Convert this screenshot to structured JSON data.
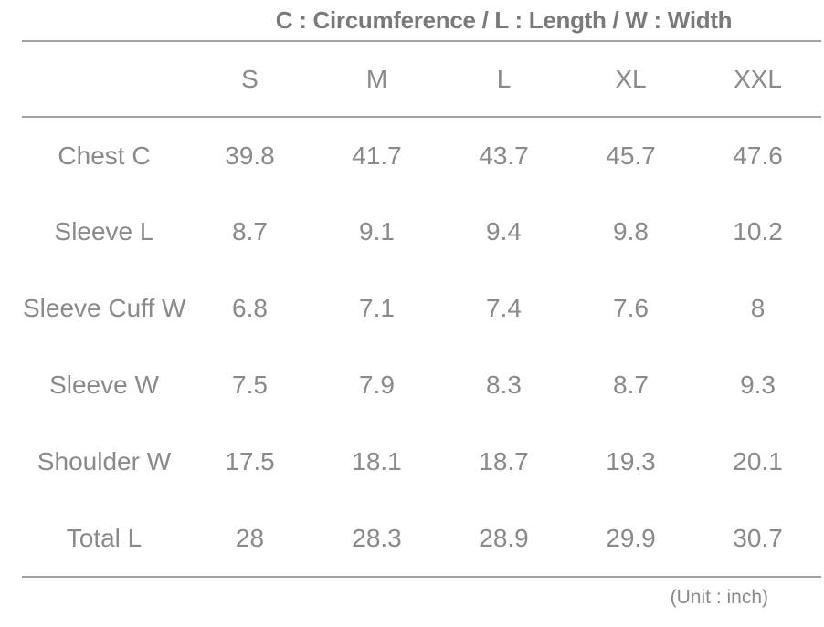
{
  "colors": {
    "text": "#8a8a8a",
    "title": "#7a7a7a",
    "divider": "#a3a3a3"
  },
  "chart_data": {
    "type": "table",
    "title": "C : Circumference / L : Length / W : Width",
    "columns": [
      "S",
      "M",
      "L",
      "XL",
      "XXL"
    ],
    "rows": [
      {
        "label": "Chest C",
        "values": [
          "39.8",
          "41.7",
          "43.7",
          "45.7",
          "47.6"
        ]
      },
      {
        "label": "Sleeve L",
        "values": [
          "8.7",
          "9.1",
          "9.4",
          "9.8",
          "10.2"
        ]
      },
      {
        "label": "Sleeve Cuff W",
        "values": [
          "6.8",
          "7.1",
          "7.4",
          "7.6",
          "8"
        ]
      },
      {
        "label": "Sleeve W",
        "values": [
          "7.5",
          "7.9",
          "8.3",
          "8.7",
          "9.3"
        ]
      },
      {
        "label": "Shoulder W",
        "values": [
          "17.5",
          "18.1",
          "18.7",
          "19.3",
          "20.1"
        ]
      },
      {
        "label": "Total L",
        "values": [
          "28",
          "28.3",
          "28.9",
          "29.9",
          "30.7"
        ]
      }
    ],
    "unit_note": "(Unit : inch)"
  }
}
